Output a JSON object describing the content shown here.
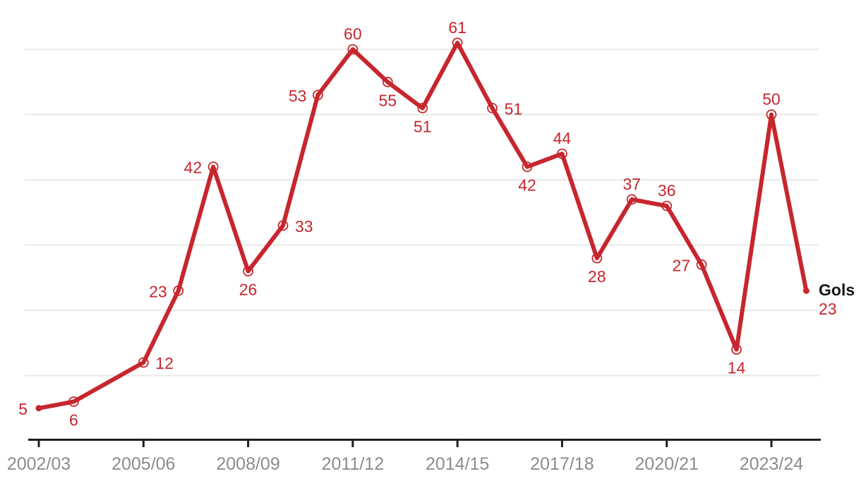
{
  "page": {
    "background": "#ffffff"
  },
  "chart_data": {
    "type": "line",
    "title": "",
    "series_label": "Gols",
    "end_value_text": "23",
    "points": [
      {
        "x_index": 0,
        "value": 5,
        "label_position": "left"
      },
      {
        "x_index": 1,
        "value": 6,
        "label_position": "below"
      },
      {
        "x_index": 3,
        "value": 12,
        "label_position": "right"
      },
      {
        "x_index": 4,
        "value": 23,
        "label_position": "left"
      },
      {
        "x_index": 5,
        "value": 42,
        "label_position": "left"
      },
      {
        "x_index": 6,
        "value": 26,
        "label_position": "below"
      },
      {
        "x_index": 7,
        "value": 33,
        "label_position": "right"
      },
      {
        "x_index": 8,
        "value": 53,
        "label_position": "left"
      },
      {
        "x_index": 9,
        "value": 60,
        "label_position": "above"
      },
      {
        "x_index": 10,
        "value": 55,
        "label_position": "below"
      },
      {
        "x_index": 11,
        "value": 51,
        "label_position": "below"
      },
      {
        "x_index": 12,
        "value": 61,
        "label_position": "above"
      },
      {
        "x_index": 13,
        "value": 51,
        "label_position": "right"
      },
      {
        "x_index": 14,
        "value": 42,
        "label_position": "below"
      },
      {
        "x_index": 15,
        "value": 44,
        "label_position": "above"
      },
      {
        "x_index": 16,
        "value": 28,
        "label_position": "below"
      },
      {
        "x_index": 17,
        "value": 37,
        "label_position": "above"
      },
      {
        "x_index": 18,
        "value": 36,
        "label_position": "above"
      },
      {
        "x_index": 19,
        "value": 27,
        "label_position": "left"
      },
      {
        "x_index": 20,
        "value": 14,
        "label_position": "below"
      },
      {
        "x_index": 21,
        "value": 50,
        "label_position": "above"
      },
      {
        "x_index": 22,
        "value": 23,
        "label_position": "end"
      }
    ],
    "x_ticks": [
      {
        "label": "2002/03",
        "x_index": 0
      },
      {
        "label": "2005/06",
        "x_index": 3
      },
      {
        "label": "2008/09",
        "x_index": 6
      },
      {
        "label": "2011/12",
        "x_index": 9
      },
      {
        "label": "2014/15",
        "x_index": 12
      },
      {
        "label": "2017/18",
        "x_index": 15
      },
      {
        "label": "2020/21",
        "x_index": 18
      },
      {
        "label": "2023/24",
        "x_index": 21
      }
    ],
    "ylim": [
      0,
      67
    ],
    "gridline_values": [
      10,
      20,
      30,
      40,
      50,
      60
    ],
    "grid": "horizontal-only",
    "legend_position": "right-of-line-end",
    "xlabel": "",
    "ylabel": "",
    "colors": {
      "line": "#c7262d",
      "marker_fill": "#ffffff",
      "value_label": "#c7262d",
      "axis": "#1f1f1f",
      "tick_label": "#8c8c8c",
      "grid": "#e9e9e9",
      "series_label": "#161616"
    }
  }
}
